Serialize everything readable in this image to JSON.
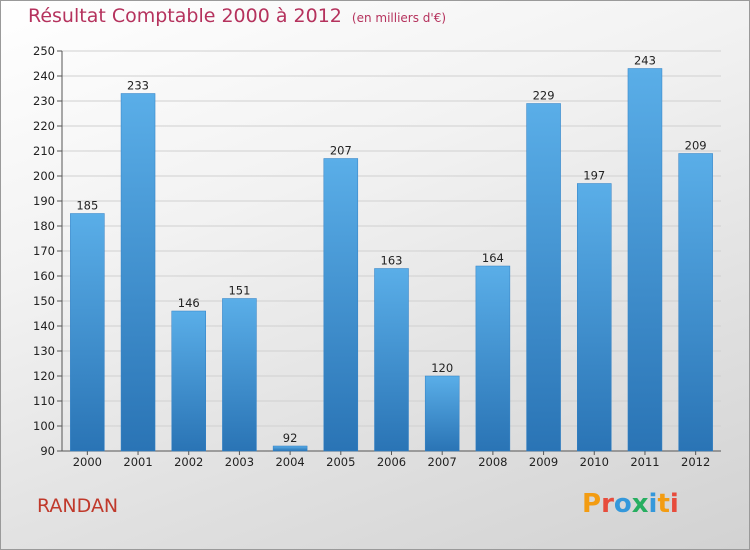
{
  "header": {
    "title": "Résultat Comptable 2000 à 2012",
    "subtitle": "(en milliers d'€)"
  },
  "footer": {
    "commune": "RANDAN",
    "logo_text": "Proxiti"
  },
  "colors": {
    "title": "#b5325d",
    "commune": "#c0392b",
    "bar_top": "#5aaee8",
    "bar_bottom": "#2a74b5",
    "grid": "#d0d0d0"
  },
  "chart_data": {
    "type": "bar",
    "title": "Résultat Comptable 2000 à 2012",
    "subtitle": "(en milliers d'€)",
    "xlabel": "",
    "ylabel": "",
    "categories": [
      "2000",
      "2001",
      "2002",
      "2003",
      "2004",
      "2005",
      "2006",
      "2007",
      "2008",
      "2009",
      "2010",
      "2011",
      "2012"
    ],
    "values": [
      185,
      233,
      146,
      151,
      92,
      207,
      163,
      120,
      164,
      229,
      197,
      243,
      209
    ],
    "ylim": [
      90,
      250
    ],
    "yticks": [
      90,
      100,
      110,
      120,
      130,
      140,
      150,
      160,
      170,
      180,
      190,
      200,
      210,
      220,
      230,
      240,
      250
    ],
    "grid": true,
    "legend": "none"
  }
}
